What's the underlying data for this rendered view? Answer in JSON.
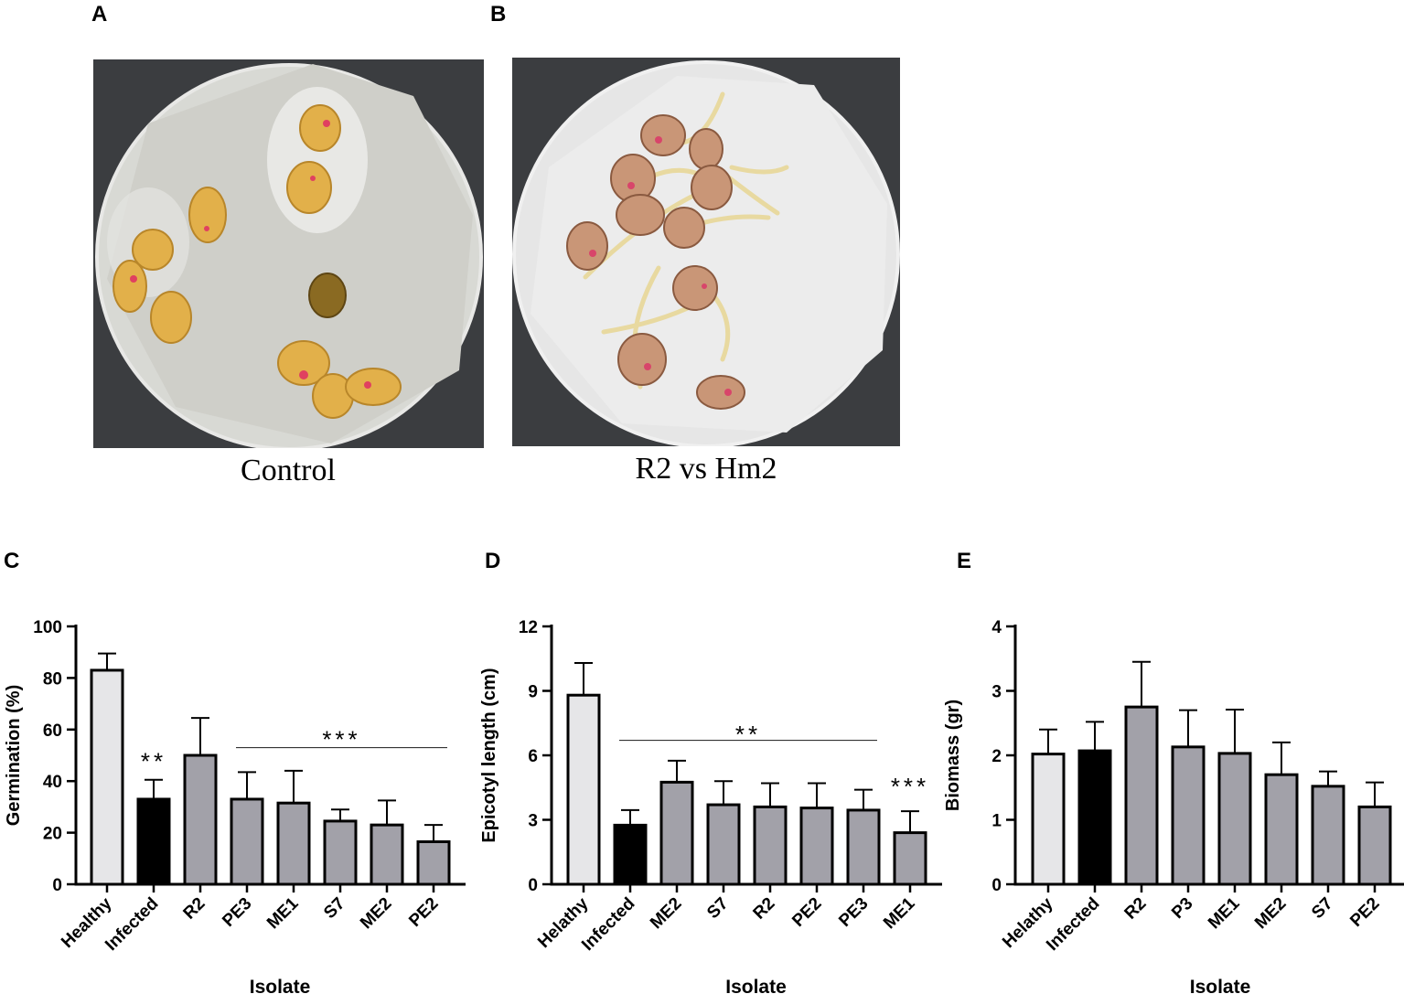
{
  "panels": {
    "a": {
      "label": "A",
      "caption": "Control"
    },
    "b": {
      "label": "B",
      "caption": "R2 vs Hm2"
    },
    "c": {
      "label": "C"
    },
    "d": {
      "label": "D"
    },
    "e": {
      "label": "E"
    }
  },
  "colors": {
    "healthy": "#e6e6e8",
    "infected": "#000000",
    "isolate": "#a2a1a9",
    "line": "#000000",
    "sigline": "#333333"
  },
  "chart_data": [
    {
      "id": "c",
      "type": "bar",
      "title": "",
      "xlabel": "Isolate",
      "ylabel": "Germination (%)",
      "ylim": [
        0,
        100
      ],
      "yticks": [
        0,
        20,
        40,
        60,
        80,
        100
      ],
      "categories": [
        "Healthy",
        "Infected",
        "R2",
        "PE3",
        "ME1",
        "S7",
        "ME2",
        "PE2"
      ],
      "values": [
        83,
        33,
        50,
        33,
        31.5,
        24.5,
        23,
        16.5
      ],
      "errors": [
        6.5,
        7.5,
        14.5,
        10.5,
        12.5,
        4.5,
        9.5,
        6.5
      ],
      "fills": [
        "healthy",
        "infected",
        "isolate",
        "isolate",
        "isolate",
        "isolate",
        "isolate",
        "isolate"
      ],
      "annotations": [
        {
          "text": "**",
          "category_index": 1,
          "y": 48
        },
        {
          "text": "***",
          "line_from": 3,
          "line_to": 7,
          "y": 53,
          "label_y": 58
        }
      ]
    },
    {
      "id": "d",
      "type": "bar",
      "title": "",
      "xlabel": "Isolate",
      "ylabel": "Epicotyl length (cm)",
      "ylim": [
        0,
        12
      ],
      "yticks": [
        0,
        3,
        6,
        9,
        12
      ],
      "categories": [
        "Helathy",
        "Infected",
        "ME2",
        "S7",
        "R2",
        "PE2",
        "PE3",
        "ME1"
      ],
      "values": [
        8.8,
        2.75,
        4.75,
        3.7,
        3.6,
        3.55,
        3.45,
        2.4
      ],
      "errors": [
        1.5,
        0.7,
        1.0,
        1.1,
        1.1,
        1.15,
        0.95,
        1.0
      ],
      "fills": [
        "healthy",
        "infected",
        "isolate",
        "isolate",
        "isolate",
        "isolate",
        "isolate",
        "isolate"
      ],
      "annotations": [
        {
          "text": "**",
          "line_from": 1,
          "line_to": 6,
          "y": 6.7,
          "label_y": 7.2
        },
        {
          "text": "***",
          "category_index": 7,
          "y": 4.6
        }
      ]
    },
    {
      "id": "e",
      "type": "bar",
      "title": "",
      "xlabel": "Isolate",
      "ylabel": "Biomass (gr)",
      "ylim": [
        0,
        4
      ],
      "yticks": [
        0,
        1,
        2,
        3,
        4
      ],
      "categories": [
        "Helathy",
        "Infected",
        "R2",
        "P3",
        "ME1",
        "ME2",
        "S7",
        "PE2"
      ],
      "values": [
        2.02,
        2.07,
        2.75,
        2.13,
        2.03,
        1.7,
        1.52,
        1.2
      ],
      "errors": [
        0.38,
        0.45,
        0.7,
        0.57,
        0.68,
        0.5,
        0.23,
        0.38
      ],
      "fills": [
        "healthy",
        "infected",
        "isolate",
        "isolate",
        "isolate",
        "isolate",
        "isolate",
        "isolate"
      ],
      "annotations": []
    }
  ]
}
